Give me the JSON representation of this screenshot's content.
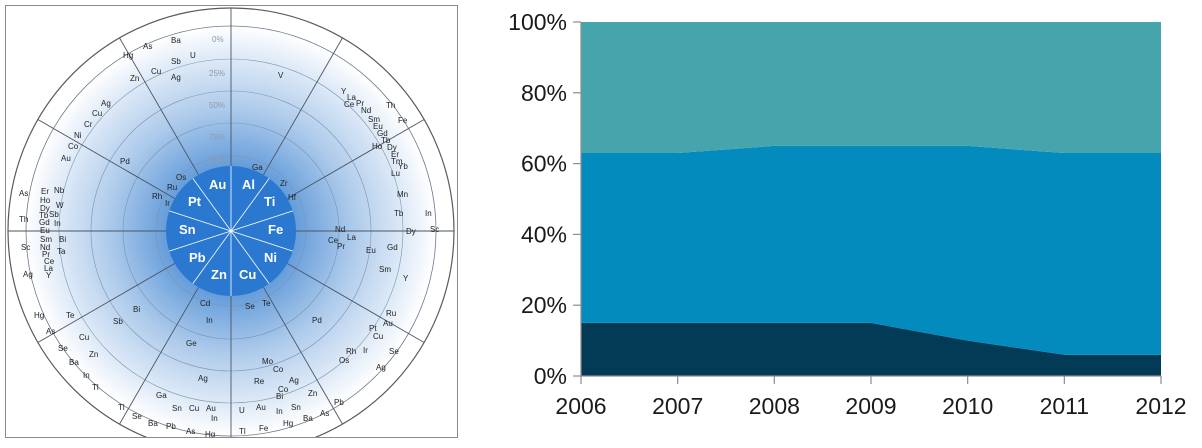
{
  "wheel": {
    "ring_labels": [
      "0%",
      "25%",
      "50%",
      "75%",
      "100%"
    ],
    "core_elements": [
      "Au",
      "Al",
      "Ti",
      "Fe",
      "Ni",
      "Cu",
      "Zn",
      "Pb",
      "Sn",
      "Pt"
    ],
    "inner_elements": [
      "Os",
      "Ru",
      "Rh",
      "Ir",
      "Ga",
      "Zr",
      "Hf",
      "Cd",
      "In",
      "Se",
      "Te"
    ],
    "ring_25_elements": [
      "Pd",
      "Bi",
      "Sb",
      "Ge",
      "Nd",
      "La",
      "Ce",
      "Pr",
      "Mo",
      "Co"
    ],
    "ring_50_elements": [
      "Ag",
      "Cu",
      "Cr",
      "Ni",
      "Co",
      "Au",
      "Tb",
      "Eu",
      "Gd",
      "Sm",
      "Pd",
      "Rh",
      "Pt",
      "Ag"
    ],
    "outer_elements": [
      "Hg",
      "As",
      "Ba",
      "Sb",
      "U",
      "Zn",
      "Cu",
      "Ag",
      "V",
      "Y",
      "La",
      "Ce",
      "Pr",
      "Nd",
      "Sm",
      "Eu",
      "Gd",
      "Tb",
      "Dy",
      "Ho",
      "Er",
      "Tm",
      "Yb",
      "Lu",
      "Th",
      "Fe",
      "Mn",
      "In",
      "Sc",
      "Dy",
      "Y",
      "Ru",
      "Au",
      "Cu",
      "Ir",
      "Os",
      "Se",
      "Ag",
      "Re",
      "Co",
      "Ag",
      "Bi",
      "Zn",
      "Sn",
      "In",
      "Pb",
      "As",
      "Ba",
      "Hg",
      "Fe",
      "Tl",
      "U",
      "Au",
      "In",
      "Sn",
      "Cu",
      "Au",
      "Ga",
      "Tl",
      "Se",
      "Ba",
      "Pb",
      "As",
      "Hg",
      "Hg",
      "Te",
      "As",
      "Cu",
      "Se",
      "Zn",
      "Ba",
      "In",
      "Tl",
      "As",
      "Er",
      "Nb",
      "Ho",
      "W",
      "Th",
      "Dy",
      "Tb",
      "Sb",
      "Gd",
      "In",
      "Eu",
      "Sc",
      "Sm",
      "Bi",
      "Nd",
      "Ta",
      "Pr",
      "Ce",
      "Ag",
      "La",
      "Y"
    ]
  },
  "chart_data": {
    "type": "area",
    "stacked": true,
    "percent": true,
    "x": [
      "2006",
      "2007",
      "2008",
      "2009",
      "2010",
      "2011",
      "2012"
    ],
    "series": [
      {
        "values": [
          15,
          15,
          15,
          15,
          10,
          6,
          6
        ],
        "color": "#033a55"
      },
      {
        "values": [
          48,
          48,
          50,
          50,
          55,
          57,
          57
        ],
        "color": "#048bbd"
      },
      {
        "values": [
          37,
          37,
          35,
          35,
          35,
          37,
          37
        ],
        "color": "#46a5ac"
      }
    ],
    "yticks": [
      "0%",
      "20%",
      "40%",
      "60%",
      "80%",
      "100%"
    ],
    "ylim": [
      0,
      100
    ],
    "title": "",
    "xlabel": "",
    "ylabel": ""
  }
}
